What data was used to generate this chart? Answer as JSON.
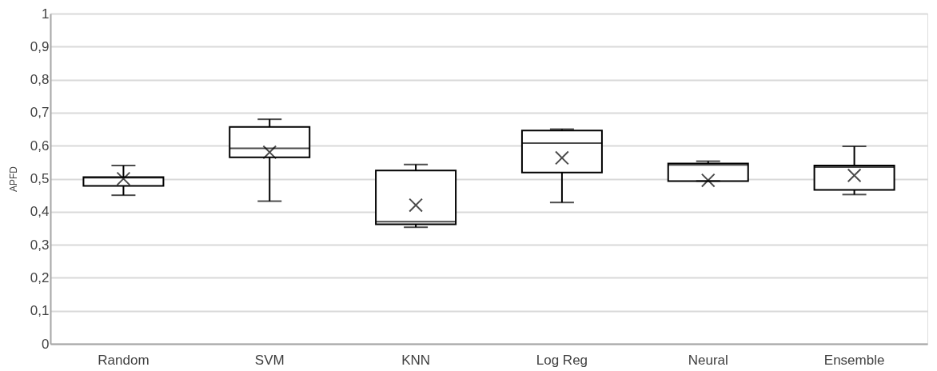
{
  "chart_data": {
    "type": "box",
    "ylabel": "APFD",
    "categories": [
      "Random",
      "SVM",
      "KNN",
      "Log Reg",
      "Neural",
      "Ensemble"
    ],
    "boxes": [
      {
        "low": 0.45,
        "q1": 0.478,
        "median": 0.503,
        "q3": 0.505,
        "high": 0.54,
        "mean": 0.5
      },
      {
        "low": 0.432,
        "q1": 0.565,
        "median": 0.592,
        "q3": 0.657,
        "high": 0.68,
        "mean": 0.58
      },
      {
        "low": 0.353,
        "q1": 0.362,
        "median": 0.37,
        "q3": 0.525,
        "high": 0.543,
        "mean": 0.42
      },
      {
        "low": 0.428,
        "q1": 0.519,
        "median": 0.608,
        "q3": 0.646,
        "high": 0.65,
        "mean": 0.563
      },
      {
        "low": 0.493,
        "q1": 0.493,
        "median": 0.542,
        "q3": 0.546,
        "high": 0.553,
        "mean": 0.495
      },
      {
        "low": 0.452,
        "q1": 0.466,
        "median": 0.535,
        "q3": 0.54,
        "high": 0.598,
        "mean": 0.51
      }
    ],
    "ylim": [
      0,
      1
    ],
    "yticks": [
      0,
      {
        "value": 0.1,
        "label": "0,1"
      },
      {
        "value": 0.2,
        "label": "0,2"
      },
      {
        "value": 0.3,
        "label": "0,3"
      },
      {
        "value": 0.4,
        "label": "0,4"
      },
      {
        "value": 0.5,
        "label": "0,5"
      },
      {
        "value": 0.6,
        "label": "0,6"
      },
      {
        "value": 0.7,
        "label": "0,7"
      },
      {
        "value": 0.8,
        "label": "0,8"
      },
      {
        "value": 0.9,
        "label": "0,9"
      },
      1
    ],
    "grid": "y",
    "color": "#000000"
  }
}
